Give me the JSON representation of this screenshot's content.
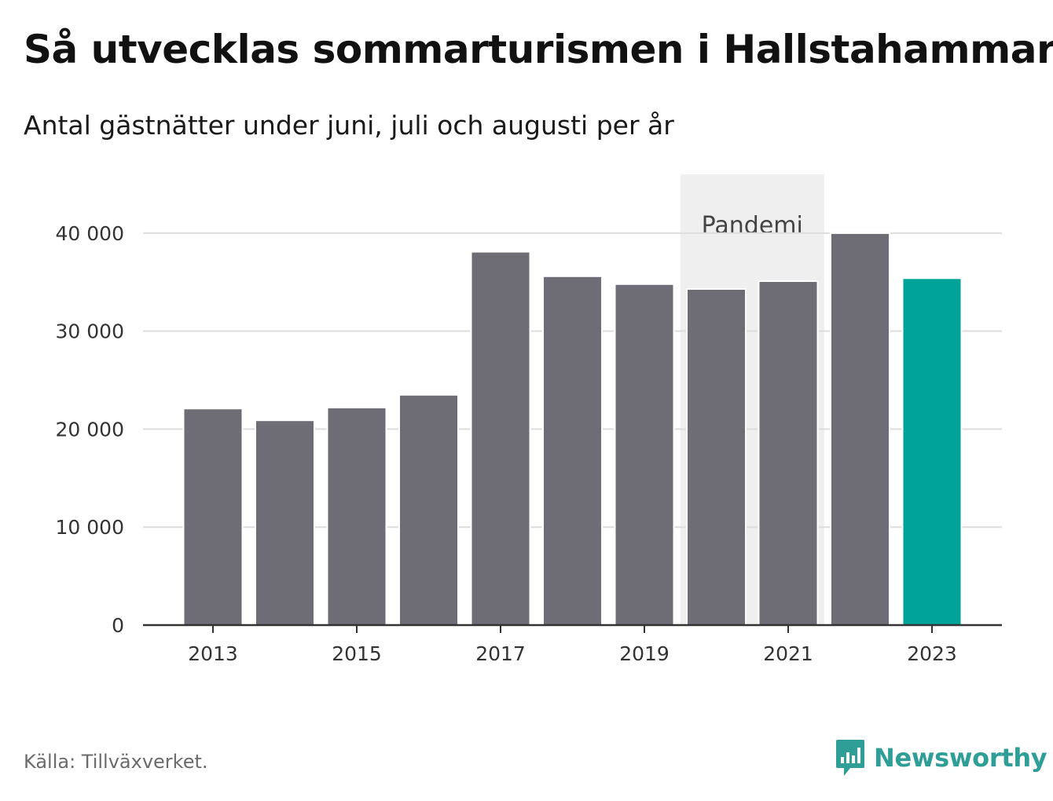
{
  "header": {
    "title": "Så utvecklas sommarturismen i Hallstahammar",
    "subtitle": "Antal gästnätter under juni, juli och augusti per år"
  },
  "footer": {
    "source": "Källa: Tillväxverket.",
    "brand": "Newsworthy"
  },
  "colors": {
    "bar_default": "#6e6d75",
    "bar_highlight": "#00a398",
    "annotation_band": "#efefef",
    "gridline": "#dddddd",
    "brand": "#2e9e96"
  },
  "chart_data": {
    "type": "bar",
    "title": "Så utvecklas sommarturismen i Hallstahammar",
    "subtitle": "Antal gästnätter under juni, juli och augusti per år",
    "categories": [
      "2013",
      "2014",
      "2015",
      "2016",
      "2017",
      "2018",
      "2019",
      "2020",
      "2021",
      "2022",
      "2023"
    ],
    "values": [
      22100,
      20900,
      22200,
      23500,
      38100,
      35600,
      34800,
      34300,
      35100,
      40000,
      35400
    ],
    "highlight": [
      "2023"
    ],
    "ylim": [
      0,
      46000
    ],
    "yticks": [
      0,
      10000,
      20000,
      30000,
      40000
    ],
    "ytick_labels": [
      "0",
      "10 000",
      "20 000",
      "30 000",
      "40 000"
    ],
    "xtick_labels": [
      "2013",
      "2015",
      "2017",
      "2019",
      "2021",
      "2023"
    ],
    "annotation": {
      "label": "Pandemi",
      "from": "2020",
      "to": "2021"
    },
    "grid": true,
    "legend": "none"
  }
}
